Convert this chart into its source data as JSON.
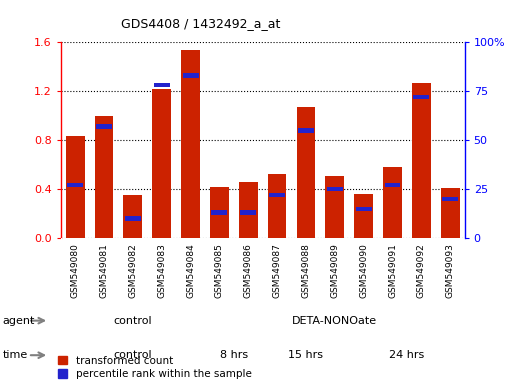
{
  "title": "GDS4408 / 1432492_a_at",
  "samples": [
    "GSM549080",
    "GSM549081",
    "GSM549082",
    "GSM549083",
    "GSM549084",
    "GSM549085",
    "GSM549086",
    "GSM549087",
    "GSM549088",
    "GSM549089",
    "GSM549090",
    "GSM549091",
    "GSM549092",
    "GSM549093"
  ],
  "transformed_count": [
    0.83,
    1.0,
    0.35,
    1.22,
    1.54,
    0.42,
    0.46,
    0.52,
    1.07,
    0.51,
    0.36,
    0.58,
    1.27,
    0.41
  ],
  "percentile_rank": [
    27,
    57,
    10,
    78,
    83,
    13,
    13,
    22,
    55,
    25,
    15,
    27,
    72,
    20
  ],
  "left_ylim": [
    0,
    1.6
  ],
  "right_ylim": [
    0,
    100
  ],
  "left_yticks": [
    0,
    0.4,
    0.8,
    1.2,
    1.6
  ],
  "right_yticks": [
    0,
    25,
    50,
    75,
    100
  ],
  "right_yticklabels": [
    "0",
    "25",
    "50",
    "75",
    "100%"
  ],
  "bar_color": "#cc2200",
  "percentile_color": "#2222cc",
  "agent_control_color": "#aaeaaa",
  "agent_deta_color": "#44dd44",
  "time_control_color": "#f0aaee",
  "time_8hrs_color": "#e077d0",
  "time_15hrs_color": "#cc44bb",
  "time_24hrs_color": "#cc44bb",
  "legend_red_label": "transformed count",
  "legend_blue_label": "percentile rank within the sample",
  "control_samples": 5,
  "deta_8hrs_samples": 2,
  "deta_15hrs_samples": 3,
  "deta_24hrs_samples": 4
}
